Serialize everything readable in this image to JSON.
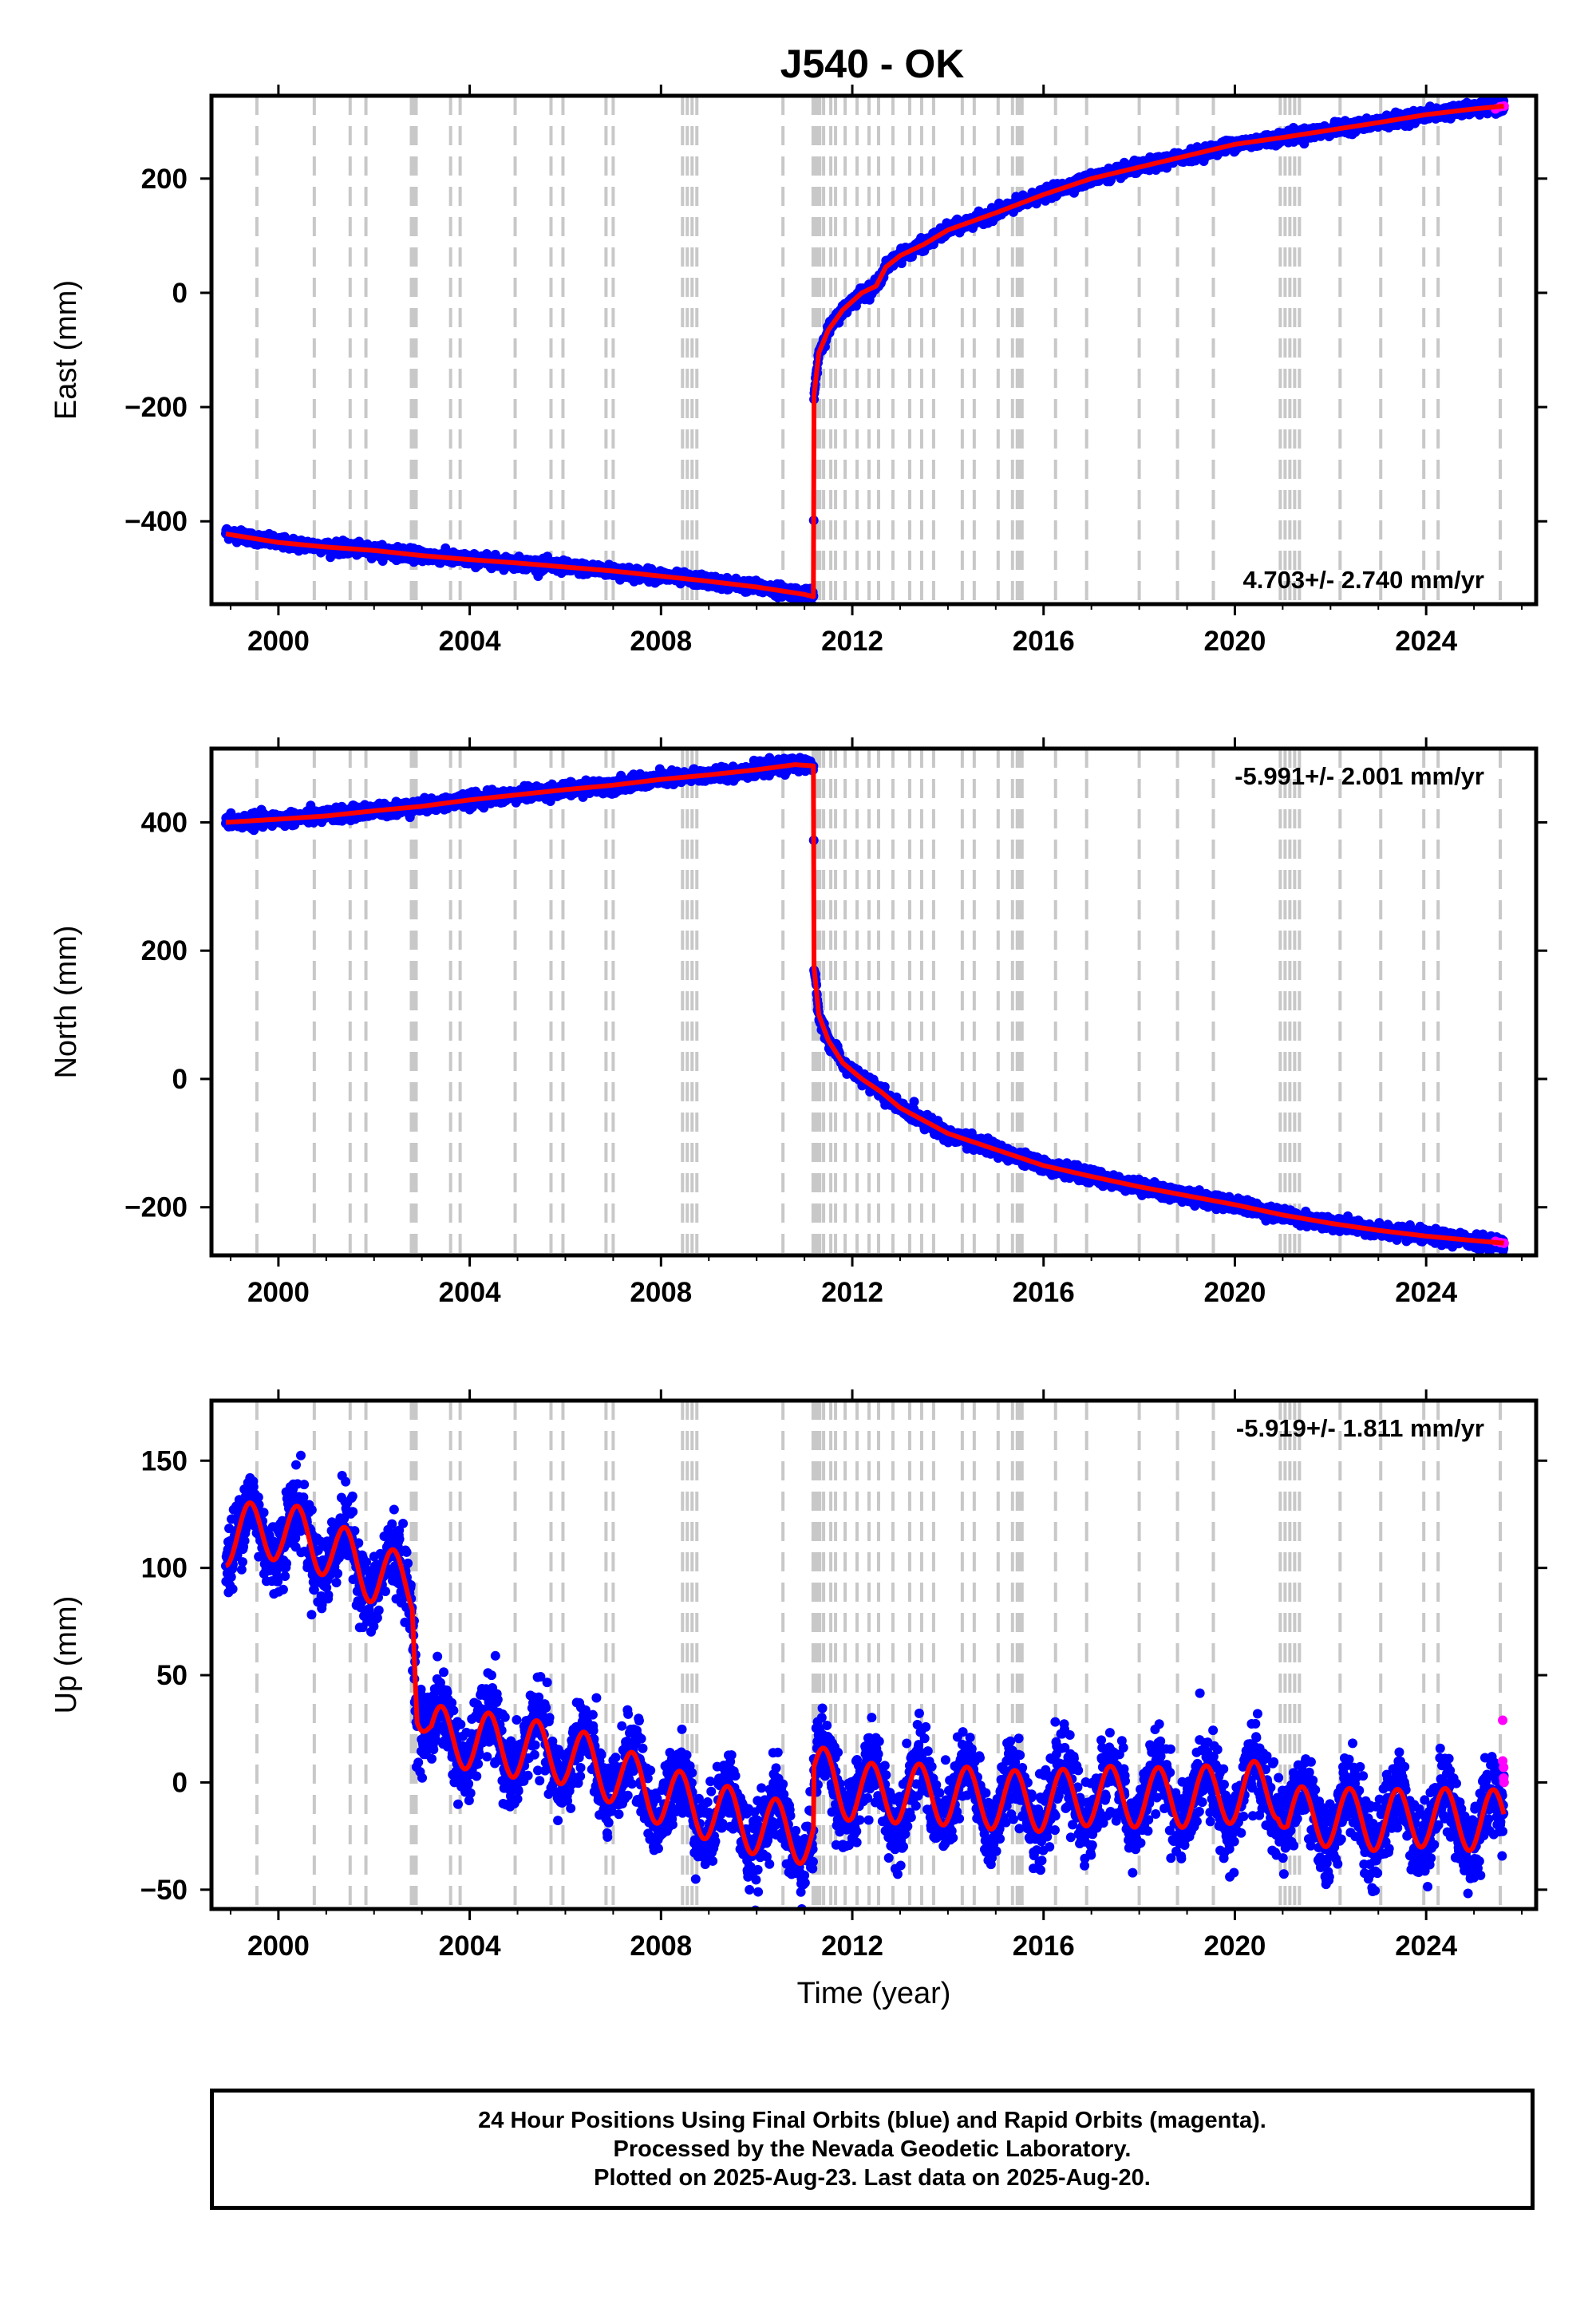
{
  "title": "J540 - OK",
  "chart_data": [
    {
      "type": "scatter",
      "panel": "east",
      "ylabel": "East (mm)",
      "xlabel": "",
      "xlim": [
        1998.6,
        2026.3
      ],
      "ylim": [
        -545,
        345
      ],
      "yticks": [
        -400,
        -200,
        0,
        200
      ],
      "xticks": [
        2000,
        2004,
        2008,
        2012,
        2016,
        2020,
        2024
      ],
      "xtick_labels": [
        "2000",
        "2004",
        "2008",
        "2012",
        "2016",
        "2020",
        "2024"
      ],
      "ytick_labels": [
        "−400",
        "−200",
        "0",
        "200"
      ],
      "rate_label": "4.703+/- 2.740 mm/yr",
      "rate_position": "bottom-right",
      "noise_mm": 5,
      "series": [
        {
          "name": "Final Orbits (blue)",
          "color": "#0000ff",
          "x": [
            1998.9,
            1999.5,
            2000.0,
            2001.0,
            2002.0,
            2003.0,
            2004.0,
            2005.0,
            2006.0,
            2007.0,
            2008.0,
            2009.0,
            2010.0,
            2010.6,
            2011.0,
            2011.19,
            2011.2,
            2011.3,
            2011.5,
            2011.8,
            2012.2,
            2012.5,
            2012.7,
            2013.0,
            2013.5,
            2014.0,
            2015.0,
            2016.0,
            2017.0,
            2018.0,
            2019.0,
            2020.0,
            2021.0,
            2022.0,
            2023.0,
            2024.0,
            2025.0,
            2025.63
          ],
          "y": [
            -420,
            -430,
            -437,
            -445,
            -451,
            -460,
            -467,
            -473,
            -480,
            -487,
            -496,
            -505,
            -515,
            -522,
            -528,
            -532,
            -180,
            -105,
            -65,
            -30,
            0,
            12,
            45,
            65,
            85,
            110,
            140,
            172,
            200,
            220,
            240,
            260,
            272,
            285,
            298,
            312,
            322,
            327
          ]
        },
        {
          "name": "Rapid Orbits (magenta)",
          "color": "#ff00ff",
          "x": [
            2025.45,
            2025.55,
            2025.63
          ],
          "y": [
            322,
            326,
            327
          ]
        }
      ],
      "fit": {
        "color": "#ff0000",
        "x": [
          1998.9,
          2000.0,
          2001.0,
          2002.0,
          2003.0,
          2004.0,
          2005.0,
          2006.0,
          2007.0,
          2008.0,
          2009.0,
          2010.0,
          2011.0,
          2011.19,
          2011.2,
          2011.3,
          2011.5,
          2011.8,
          2012.2,
          2012.5,
          2012.7,
          2013.0,
          2013.5,
          2014.0,
          2015.0,
          2016.0,
          2017.0,
          2018.0,
          2019.0,
          2020.0,
          2021.0,
          2022.0,
          2023.0,
          2024.0,
          2025.0,
          2025.63
        ],
        "y": [
          -422,
          -437,
          -445,
          -451,
          -460,
          -467,
          -473,
          -480,
          -487,
          -496,
          -505,
          -515,
          -528,
          -532,
          -180,
          -105,
          -65,
          -30,
          0,
          12,
          45,
          65,
          85,
          110,
          140,
          172,
          200,
          220,
          240,
          260,
          272,
          285,
          298,
          312,
          322,
          327
        ]
      }
    },
    {
      "type": "scatter",
      "panel": "north",
      "ylabel": "North (mm)",
      "xlabel": "",
      "xlim": [
        1998.6,
        2026.3
      ],
      "ylim": [
        -275,
        515
      ],
      "yticks": [
        -200,
        0,
        200,
        400
      ],
      "xticks": [
        2000,
        2004,
        2008,
        2012,
        2016,
        2020,
        2024
      ],
      "xtick_labels": [
        "2000",
        "2004",
        "2008",
        "2012",
        "2016",
        "2020",
        "2024"
      ],
      "ytick_labels": [
        "−200",
        "0",
        "200",
        "400"
      ],
      "rate_label": "-5.991+/- 2.001 mm/yr",
      "rate_position": "top-right",
      "noise_mm": 5,
      "series": [
        {
          "name": "Final Orbits (blue)",
          "color": "#0000ff",
          "x": [
            1998.9,
            2000.0,
            2001.0,
            2002.0,
            2003.0,
            2004.0,
            2005.0,
            2006.0,
            2007.0,
            2008.0,
            2009.0,
            2010.0,
            2010.8,
            2011.19,
            2011.2,
            2011.3,
            2011.5,
            2011.8,
            2012.2,
            2012.6,
            2013.0,
            2013.5,
            2014.0,
            2015.0,
            2016.0,
            2017.0,
            2018.0,
            2019.0,
            2020.0,
            2021.0,
            2022.0,
            2023.0,
            2024.0,
            2025.0,
            2025.63
          ],
          "y": [
            400,
            405,
            410,
            418,
            425,
            435,
            443,
            451,
            458,
            467,
            474,
            482,
            490,
            488,
            175,
            100,
            60,
            25,
            0,
            -20,
            -45,
            -65,
            -85,
            -110,
            -135,
            -152,
            -168,
            -182,
            -196,
            -212,
            -225,
            -236,
            -245,
            -252,
            -256
          ]
        },
        {
          "name": "Rapid Orbits (magenta)",
          "color": "#ff00ff",
          "x": [
            2025.45,
            2025.55,
            2025.63
          ],
          "y": [
            -253,
            -255,
            -256
          ]
        }
      ],
      "fit": {
        "color": "#ff0000",
        "x": [
          1998.9,
          2000.0,
          2001.0,
          2002.0,
          2003.0,
          2004.0,
          2005.0,
          2006.0,
          2007.0,
          2008.0,
          2009.0,
          2010.0,
          2010.8,
          2011.19,
          2011.2,
          2011.3,
          2011.5,
          2011.8,
          2012.2,
          2012.6,
          2013.0,
          2013.5,
          2014.0,
          2015.0,
          2016.0,
          2017.0,
          2018.0,
          2019.0,
          2020.0,
          2021.0,
          2022.0,
          2023.0,
          2024.0,
          2025.0,
          2025.63
        ],
        "y": [
          400,
          405,
          410,
          418,
          425,
          435,
          443,
          451,
          458,
          467,
          474,
          482,
          490,
          488,
          175,
          100,
          60,
          25,
          0,
          -20,
          -45,
          -65,
          -85,
          -110,
          -135,
          -152,
          -168,
          -182,
          -196,
          -212,
          -225,
          -236,
          -245,
          -252,
          -256
        ]
      }
    },
    {
      "type": "scatter",
      "panel": "up",
      "ylabel": "Up (mm)",
      "xlabel": "Time (year)",
      "xlim": [
        1998.6,
        2026.3
      ],
      "ylim": [
        -59,
        178
      ],
      "yticks": [
        -50,
        0,
        50,
        100,
        150
      ],
      "xticks": [
        2000,
        2004,
        2008,
        2012,
        2016,
        2020,
        2024
      ],
      "xtick_labels": [
        "2000",
        "2004",
        "2008",
        "2012",
        "2016",
        "2020",
        "2024"
      ],
      "ytick_labels": [
        "−50",
        "0",
        "50",
        "100",
        "150"
      ],
      "rate_label": "-5.919+/- 1.811 mm/yr",
      "rate_position": "top-right",
      "noise_mm": 9,
      "seasonal_amplitude_mm": 14,
      "series": [
        {
          "name": "Final Orbits (blue)",
          "color": "#0000ff",
          "x": [
            1998.9,
            2000.0,
            2001.0,
            2002.0,
            2002.8,
            2002.9,
            2003.2,
            2004.0,
            2005.0,
            2006.0,
            2007.0,
            2008.0,
            2009.0,
            2010.0,
            2011.19,
            2011.2,
            2011.6,
            2012.0,
            2013.0,
            2014.0,
            2015.0,
            2016.0,
            2017.0,
            2018.0,
            2019.0,
            2020.0,
            2020.9,
            2021.1,
            2022.0,
            2023.0,
            2024.0,
            2025.0,
            2025.63
          ],
          "y": [
            115,
            118,
            110,
            97,
            92,
            42,
            22,
            20,
            16,
            13,
            4,
            -6,
            -13,
            -20,
            -25,
            3,
            1,
            -5,
            -5,
            -6,
            -8,
            -9,
            -6,
            -7,
            -7,
            -5,
            -3,
            -16,
            -16,
            -18,
            -16,
            -18,
            -17
          ]
        },
        {
          "name": "Rapid Orbits (magenta)",
          "color": "#ff00ff",
          "x": [
            2025.6,
            2025.6,
            2025.62,
            2025.62,
            2025.63
          ],
          "y": [
            29,
            10,
            7,
            2,
            0
          ]
        }
      ],
      "fit": {
        "color": "#ff0000",
        "x": [
          1998.9,
          2000.0,
          2001.0,
          2002.0,
          2002.8,
          2002.9,
          2003.2,
          2004.0,
          2005.0,
          2006.0,
          2007.0,
          2008.0,
          2009.0,
          2010.0,
          2011.19,
          2011.2,
          2011.6,
          2012.0,
          2013.0,
          2014.0,
          2015.0,
          2016.0,
          2017.0,
          2018.0,
          2019.0,
          2020.0,
          2020.9,
          2021.1,
          2022.0,
          2023.0,
          2024.0,
          2025.0,
          2025.63
        ],
        "y": [
          115,
          118,
          110,
          97,
          92,
          42,
          22,
          20,
          16,
          13,
          4,
          -6,
          -13,
          -20,
          -25,
          3,
          1,
          -5,
          -5,
          -6,
          -8,
          -9,
          -6,
          -7,
          -7,
          -5,
          -3,
          -16,
          -16,
          -18,
          -16,
          -18,
          -17
        ]
      }
    }
  ],
  "event_lines": [
    1999.55,
    2000.75,
    2001.5,
    2001.83,
    2002.78,
    2002.83,
    2002.88,
    2003.6,
    2003.8,
    2004.95,
    2005.7,
    2005.95,
    2006.85,
    2007.0,
    2008.45,
    2008.55,
    2008.65,
    2008.75,
    2010.55,
    2011.18,
    2011.22,
    2011.26,
    2011.32,
    2011.4,
    2011.55,
    2011.65,
    2011.85,
    2012.1,
    2012.35,
    2012.55,
    2012.85,
    2013.2,
    2013.45,
    2013.7,
    2014.3,
    2014.55,
    2015.05,
    2015.35,
    2015.45,
    2015.5,
    2015.55,
    2016.25,
    2016.9,
    2018.0,
    2018.8,
    2019.55,
    2020.95,
    2021.05,
    2021.15,
    2021.25,
    2021.35,
    2022.2,
    2023.05,
    2023.95,
    2024.25,
    2025.55
  ],
  "event_line_color": "#c8c8c8",
  "footer": {
    "line1": "24 Hour Positions Using Final Orbits (blue) and Rapid Orbits (magenta).",
    "line2": "Processed by the Nevada Geodetic Laboratory.",
    "line3": "Plotted on 2025-Aug-23. Last data on 2025-Aug-20."
  }
}
